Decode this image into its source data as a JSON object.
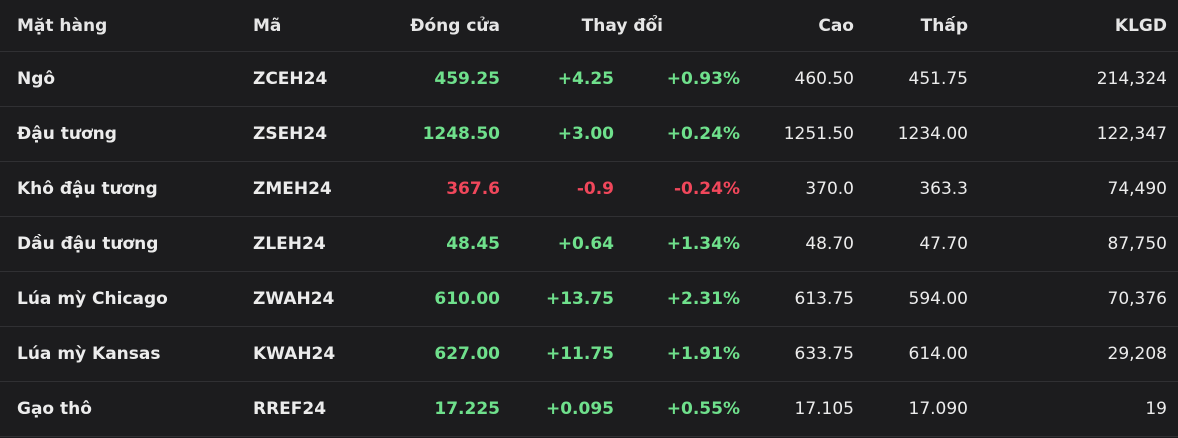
{
  "table": {
    "colors": {
      "up": "#6fe08c",
      "down": "#f0475b"
    },
    "header": [
      "Mặt hàng",
      "Mã",
      "Đóng cửa",
      "Thay đổi",
      "Cao",
      "Thấp",
      "KLGD"
    ],
    "rows": [
      [
        "Ngô",
        "ZCEH24",
        "459.25",
        "+4.25",
        "+0.93%",
        "460.50",
        "451.75",
        "214,324"
      ],
      [
        "Đậu tương",
        "ZSEH24",
        "1248.50",
        "+3.00",
        "+0.24%",
        "1251.50",
        "1234.00",
        "122,347"
      ],
      [
        "Khô đậu tương",
        "ZMEH24",
        "367.6",
        "-0.9",
        "-0.24%",
        "370.0",
        "363.3",
        "74,490"
      ],
      [
        "Dầu đậu tương",
        "ZLEH24",
        "48.45",
        "+0.64",
        "+1.34%",
        "48.70",
        "47.70",
        "87,750"
      ],
      [
        "Lúa mỳ Chicago",
        "ZWAH24",
        "610.00",
        "+13.75",
        "+2.31%",
        "613.75",
        "594.00",
        "70,376"
      ],
      [
        "Lúa mỳ Kansas",
        "KWAH24",
        "627.00",
        "+11.75",
        "+1.91%",
        "633.75",
        "614.00",
        "29,208"
      ],
      [
        "Gạo thô",
        "RREF24",
        "17.225",
        "+0.095",
        "+0.55%",
        "17.105",
        "17.090",
        "19"
      ]
    ]
  }
}
